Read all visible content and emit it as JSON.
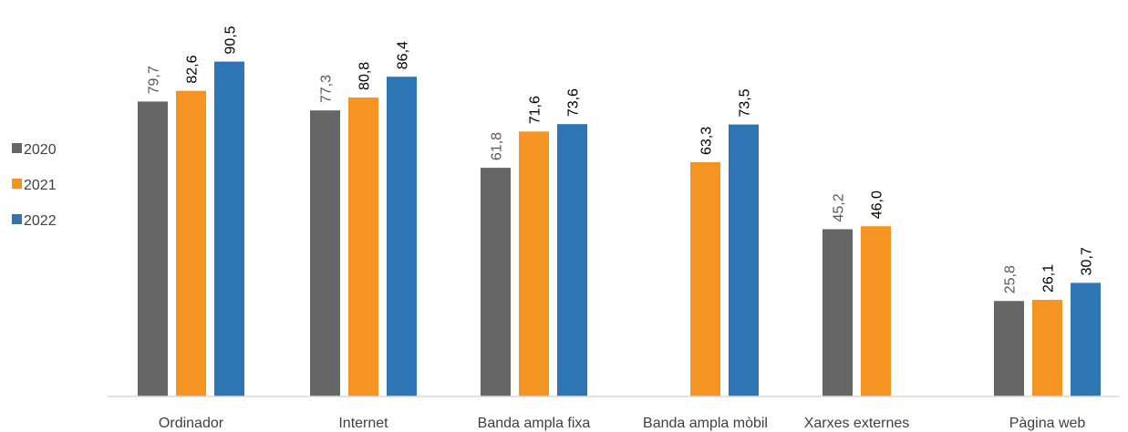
{
  "chart_data": {
    "type": "bar",
    "title": "",
    "xlabel": "",
    "ylabel": "",
    "ylim": [
      0,
      100
    ],
    "grid": false,
    "legend_position": "left",
    "categories": [
      "Ordinador",
      "Internet",
      "Banda ampla fixa",
      "Banda ampla mòbil",
      "Xarxes externes",
      "Pàgina web"
    ],
    "series": [
      {
        "name": "2020",
        "color": "#666666",
        "label_color": "#595959",
        "values": [
          79.7,
          77.3,
          61.8,
          null,
          45.2,
          25.8
        ],
        "labels": [
          "79,7",
          "77,3",
          "61,8",
          null,
          "45,2",
          "25,8"
        ]
      },
      {
        "name": "2021",
        "color": "#F59323",
        "label_color": "#000000",
        "values": [
          82.6,
          80.8,
          71.6,
          63.3,
          46.0,
          26.1
        ],
        "labels": [
          "82,6",
          "80,8",
          "71,6",
          "63,3",
          "46,0",
          "26,1"
        ]
      },
      {
        "name": "2022",
        "color": "#2E75B6",
        "label_color": "#000000",
        "values": [
          90.5,
          86.4,
          73.6,
          73.5,
          null,
          30.7
        ],
        "labels": [
          "90,5",
          "86,4",
          "73,6",
          "73,5",
          null,
          "30,7"
        ]
      }
    ]
  }
}
